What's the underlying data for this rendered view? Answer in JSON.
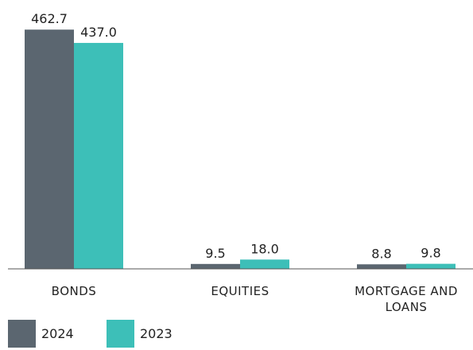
{
  "chart_data": {
    "type": "bar",
    "categories": [
      "BONDS",
      "EQUITIES",
      "MORTGAGE AND LOANS"
    ],
    "series": [
      {
        "name": "2024",
        "color": "#5b6670",
        "values": [
          462.7,
          9.5,
          8.8
        ],
        "value_labels": [
          "462.7",
          "9.5",
          "8.8"
        ]
      },
      {
        "name": "2023",
        "color": "#3dbfb8",
        "values": [
          437.0,
          18.0,
          9.8
        ],
        "value_labels": [
          "437.0",
          "18.0",
          "9.8"
        ]
      }
    ],
    "ylim": [
      0,
      480
    ],
    "legend": "bottom-left"
  }
}
